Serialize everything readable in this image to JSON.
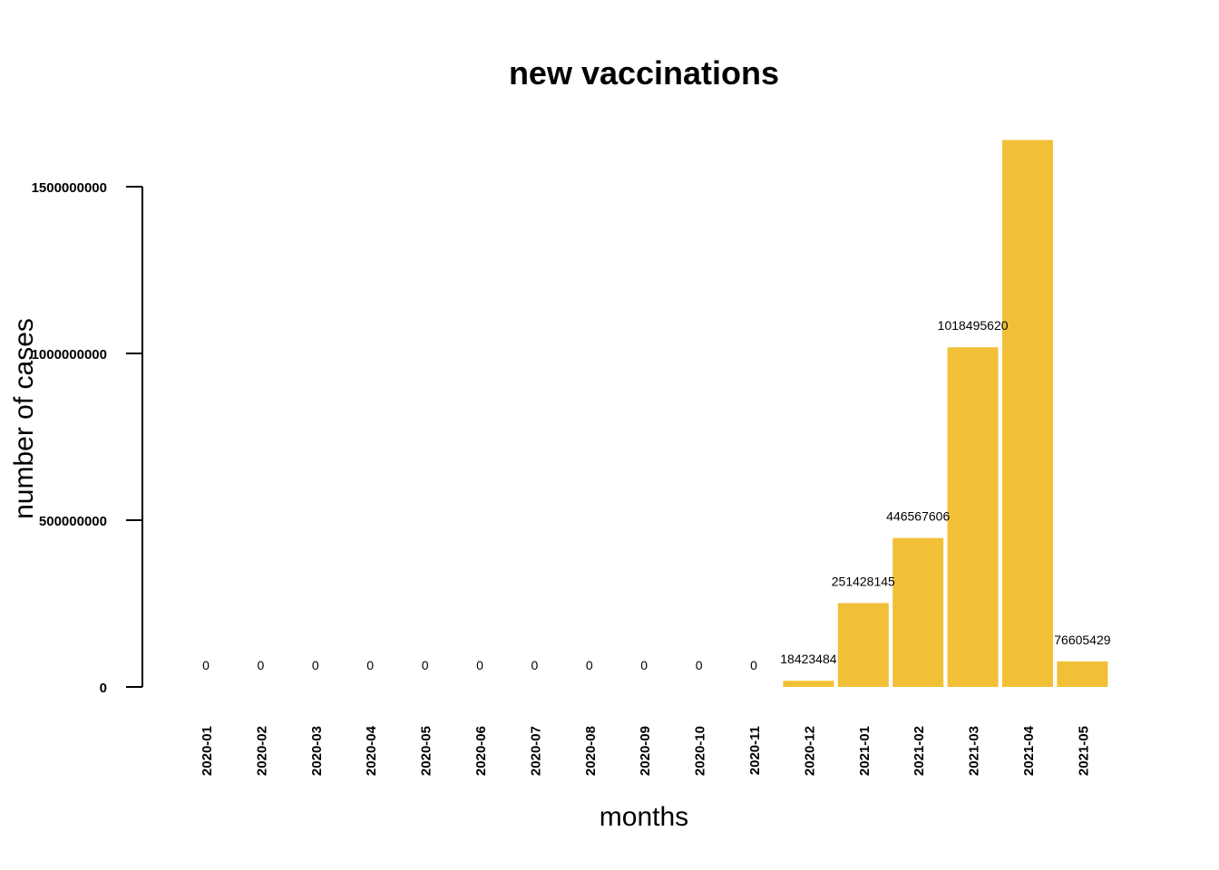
{
  "chart_data": {
    "type": "bar",
    "title": "new vaccinations",
    "xlabel": "months",
    "ylabel": "number of cases",
    "categories": [
      "2020-01",
      "2020-02",
      "2020-03",
      "2020-04",
      "2020-05",
      "2020-06",
      "2020-07",
      "2020-08",
      "2020-09",
      "2020-10",
      "2020-11",
      "2020-12",
      "2021-01",
      "2021-02",
      "2021-03",
      "2021-04",
      "2021-05"
    ],
    "values": [
      0,
      0,
      0,
      0,
      0,
      0,
      0,
      0,
      0,
      0,
      0,
      18423484,
      251428145,
      446567606,
      1018495620,
      1640000000,
      76605429
    ],
    "data_labels": [
      "0",
      "0",
      "0",
      "0",
      "0",
      "0",
      "0",
      "0",
      "0",
      "0",
      "0",
      "18423484",
      "251428145",
      "446567606",
      "1018495620",
      "",
      "76605429"
    ],
    "yticks": [
      0,
      500000000,
      1000000000,
      1500000000
    ],
    "ytick_labels": [
      "0",
      "500000000",
      "1000000000",
      "1500000000"
    ],
    "ylim": [
      0,
      1640000000
    ],
    "bar_color": "#F2C037",
    "grid": false,
    "legend": "none"
  }
}
